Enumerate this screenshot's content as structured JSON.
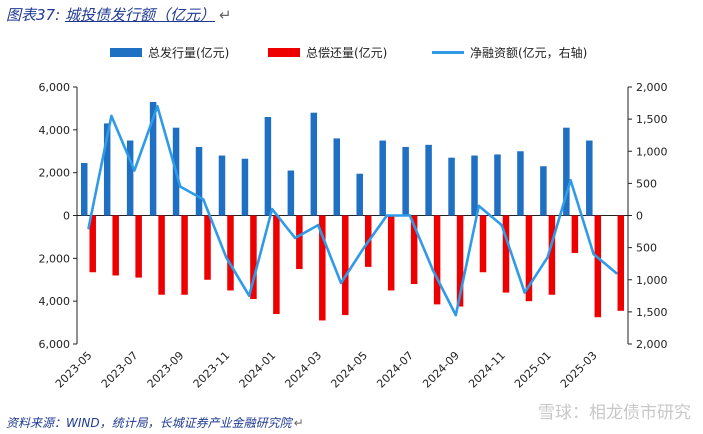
{
  "header": {
    "prefix": "图表37:",
    "title": "城投债发行额（亿元）",
    "return_mark": "↵"
  },
  "footer": {
    "source": "资料来源：WIND，统计局，长城证券产业金融研究院",
    "return_mark": "↵"
  },
  "watermark": {
    "text": "雪球：相龙债市研究"
  },
  "colors": {
    "issuance": "#1f6fc2",
    "repayment": "#ee0000",
    "net": "#2f9be8",
    "axis": "#222222"
  },
  "legend": {
    "issuance": "总发行量(亿元)",
    "repayment": "总偿还量(亿元)",
    "net": "净融资额(亿元，右轴)"
  },
  "chart_data": {
    "type": "bar",
    "title": "城投债发行额（亿元）",
    "categories": [
      "2023-05",
      "2023-06",
      "2023-07",
      "2023-08",
      "2023-09",
      "2023-10",
      "2023-11",
      "2023-12",
      "2024-01",
      "2024-02",
      "2024-03",
      "2024-04",
      "2024-05",
      "2024-06",
      "2024-07",
      "2024-08",
      "2024-09",
      "2024-10",
      "2024-11",
      "2024-12",
      "2025-01",
      "2025-02",
      "2025-03",
      "2025-04"
    ],
    "x_tick_labels": [
      "2023-05",
      "2023-07",
      "2023-09",
      "2023-11",
      "2024-01",
      "2024-03",
      "2024-05",
      "2024-07",
      "2024-09",
      "2024-11",
      "2025-01",
      "2025-03"
    ],
    "series": [
      {
        "name": "总发行量(亿元)",
        "type": "bar",
        "axis": "left",
        "values": [
          2450,
          4300,
          3500,
          5300,
          4100,
          3200,
          2800,
          2650,
          4600,
          2100,
          4800,
          3600,
          1950,
          3500,
          3200,
          3300,
          2700,
          2800,
          2850,
          3000,
          2300,
          4100,
          3500,
          0
        ]
      },
      {
        "name": "总偿还量(亿元)",
        "type": "bar",
        "axis": "left",
        "values": [
          -2650,
          -2800,
          -2900,
          -3700,
          -3700,
          -3000,
          -3500,
          -3900,
          -4600,
          -2500,
          -4900,
          -4650,
          -2400,
          -3500,
          -3200,
          -4150,
          -4250,
          -2650,
          -3600,
          -4000,
          -3700,
          -1750,
          -4750,
          -4450
        ]
      },
      {
        "name": "净融资额(亿元，右轴)",
        "type": "line",
        "axis": "right",
        "values": [
          -200,
          1550,
          700,
          1700,
          450,
          250,
          -650,
          -1250,
          100,
          -350,
          -150,
          -1050,
          -500,
          0,
          0,
          -850,
          -1550,
          150,
          -150,
          -1200,
          -650,
          550,
          -600,
          -900
        ]
      }
    ],
    "y_left": {
      "min": -6000,
      "max": 6000,
      "ticks": [
        6000,
        4000,
        2000,
        0,
        2000,
        4000,
        6000
      ],
      "tick_values": [
        6000,
        4000,
        2000,
        0,
        -2000,
        -4000,
        -6000
      ]
    },
    "y_right": {
      "min": -2000,
      "max": 2000,
      "ticks": [
        2000,
        1500,
        1000,
        500,
        0,
        500,
        1000,
        1500,
        2000
      ],
      "tick_values": [
        2000,
        1500,
        1000,
        500,
        0,
        -500,
        -1000,
        -1500,
        -2000
      ]
    },
    "legend_position": "top"
  }
}
